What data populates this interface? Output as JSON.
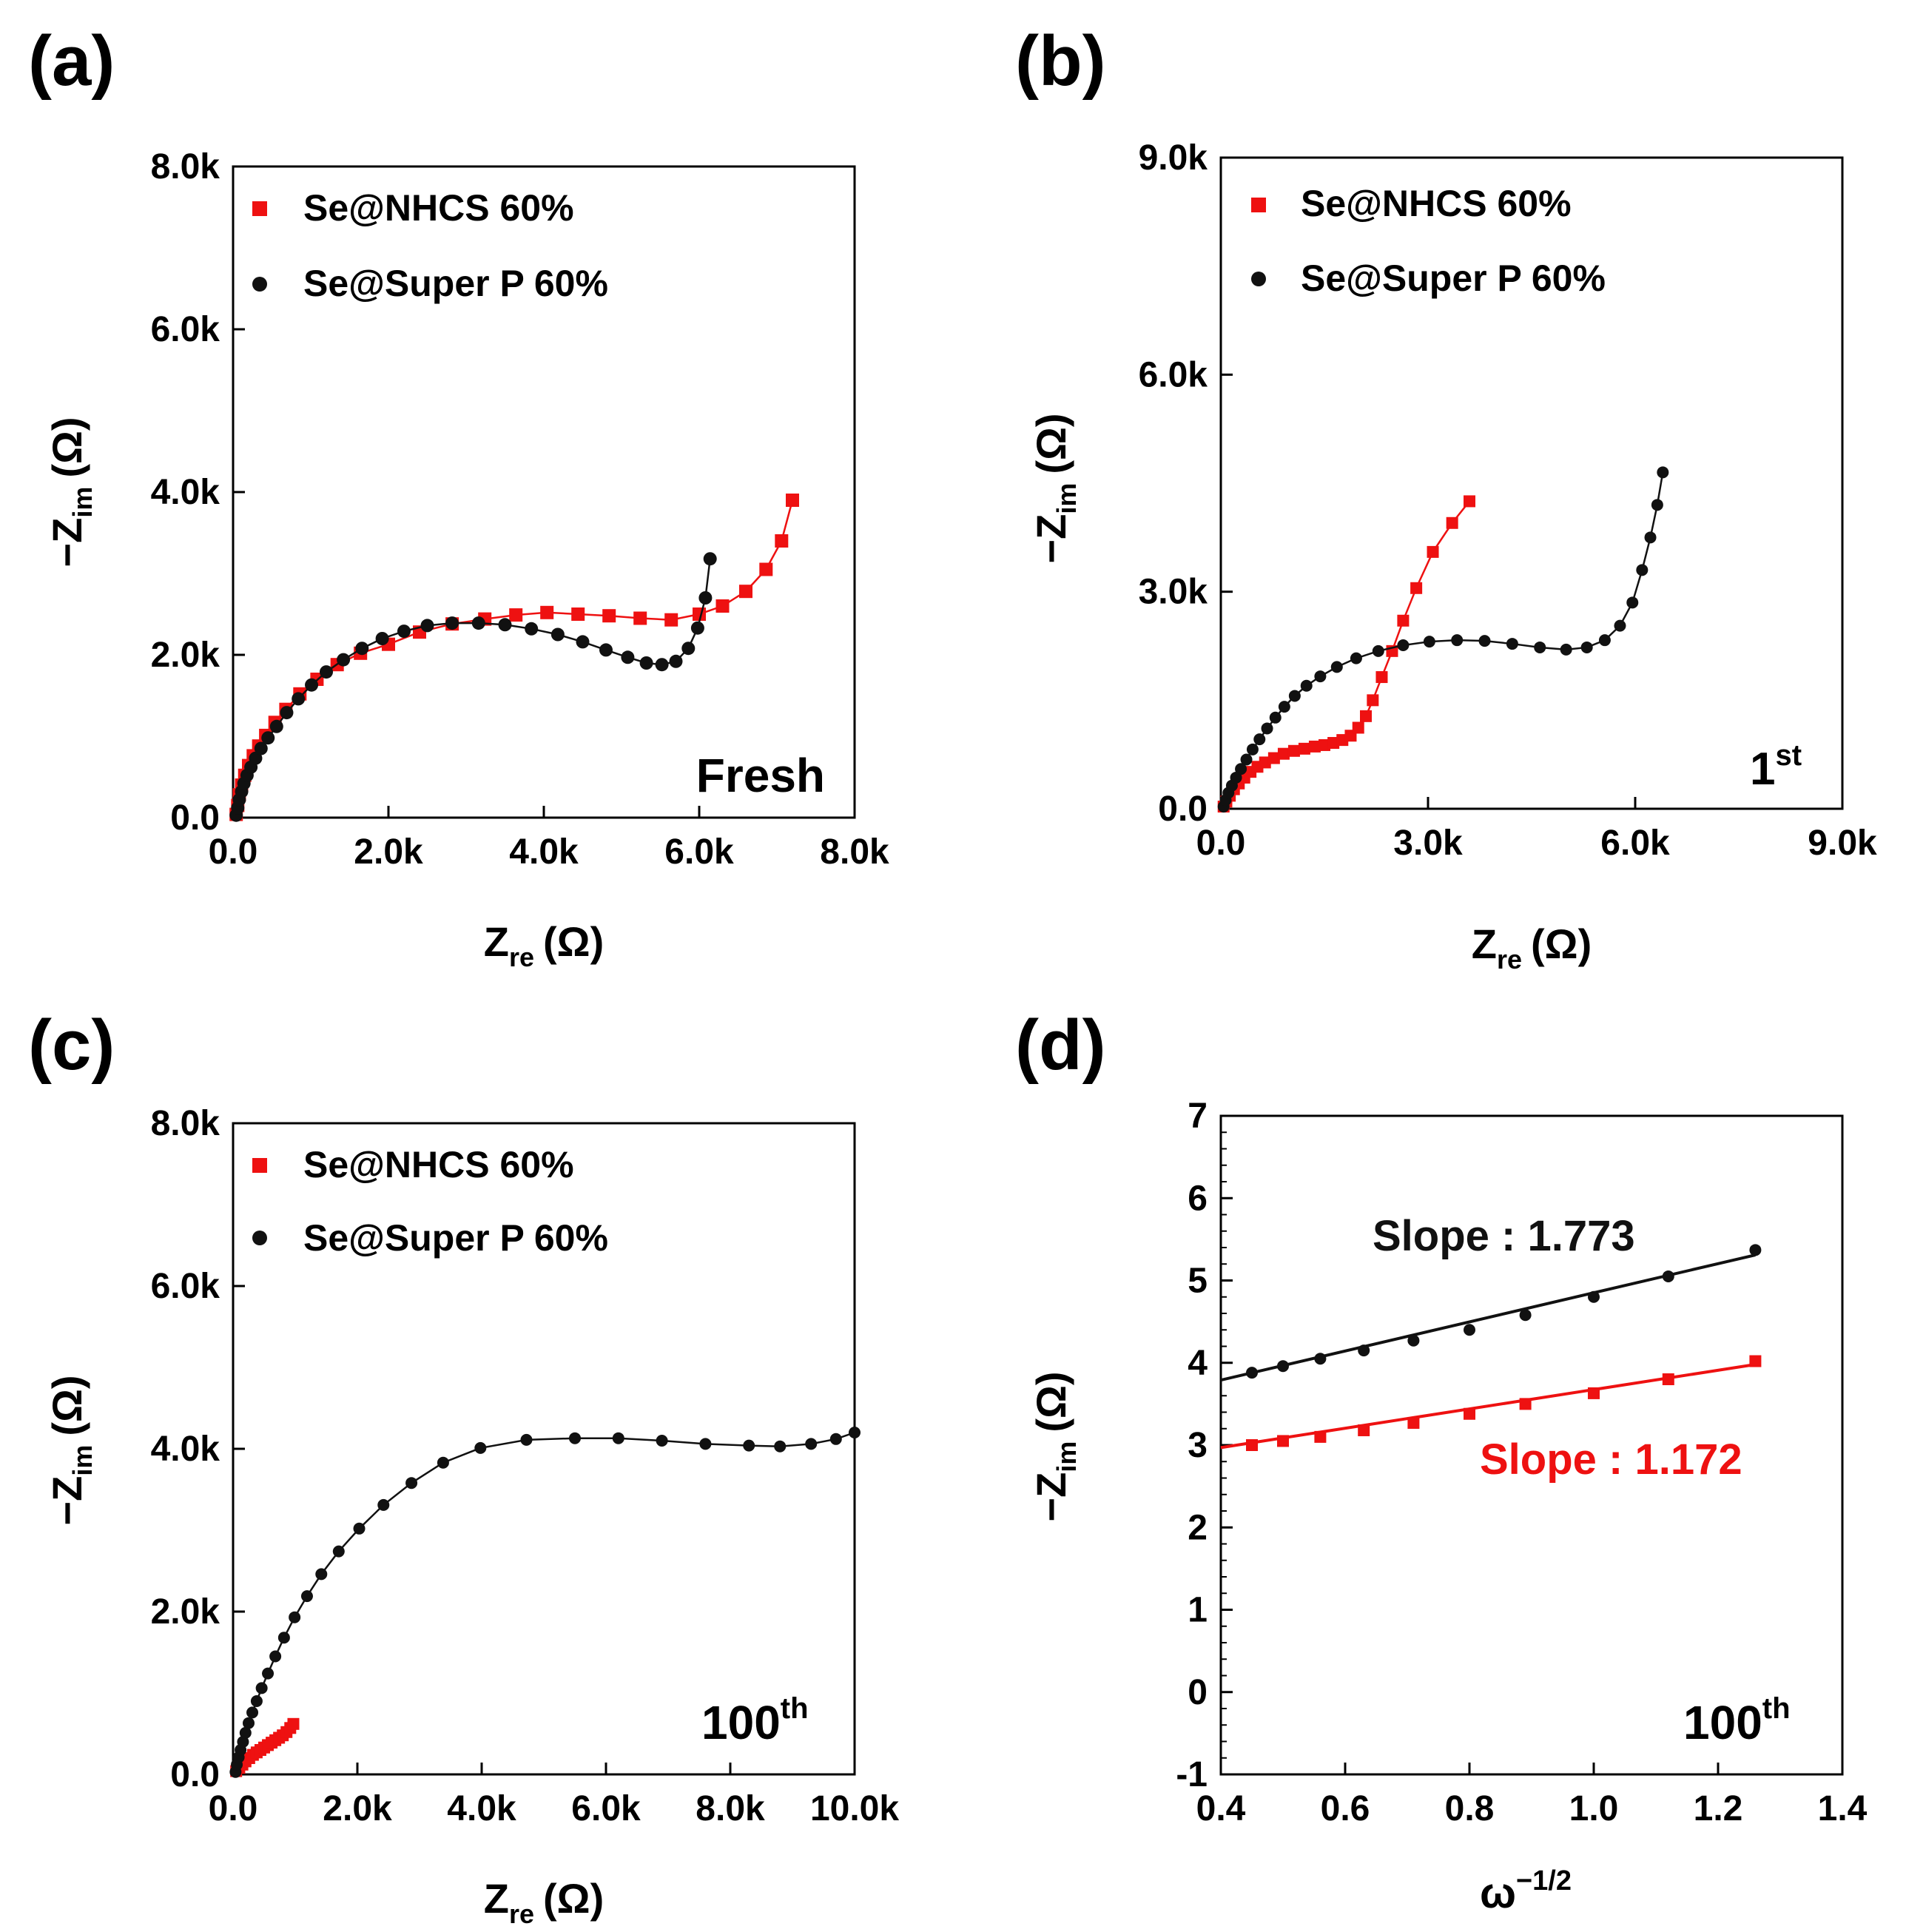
{
  "figure": {
    "colors": {
      "red": "#ee1111",
      "black": "#111111",
      "axis": "#000000"
    }
  },
  "chart_data": [
    {
      "panel": "(a)",
      "type": "scatter",
      "xlabel": "Z",
      "xlabel_sub": "re",
      "xlabel_unit": "(Ω)",
      "ylabel": "−Z",
      "ylabel_sub": "im",
      "ylabel_unit": "(Ω)",
      "xlim": [
        0,
        8000
      ],
      "ylim": [
        0,
        8000
      ],
      "xticks": [
        0,
        2000,
        4000,
        6000,
        8000
      ],
      "xtick_labels": [
        "0.0",
        "2.0k",
        "4.0k",
        "6.0k",
        "8.0k"
      ],
      "yticks": [
        0,
        2000,
        4000,
        6000,
        8000
      ],
      "ytick_labels": [
        "0.0",
        "2.0k",
        "4.0k",
        "6.0k",
        "8.0k"
      ],
      "annotation": "Fresh",
      "annotation_sup": "",
      "legend": [
        "Se@NHCS 60%",
        "Se@Super P 60%"
      ],
      "series": [
        {
          "name": "Se@NHCS 60%",
          "marker": "square",
          "color": "red",
          "x": [
            40,
            60,
            80,
            110,
            150,
            200,
            260,
            330,
            420,
            540,
            680,
            860,
            1080,
            1340,
            1640,
            2000,
            2400,
            2820,
            3240,
            3640,
            4040,
            4440,
            4840,
            5240,
            5640,
            6000,
            6300,
            6600,
            6860,
            7060,
            7200
          ],
          "y": [
            40,
            150,
            280,
            400,
            520,
            640,
            760,
            880,
            1010,
            1170,
            1330,
            1520,
            1700,
            1880,
            2020,
            2130,
            2280,
            2380,
            2440,
            2490,
            2520,
            2500,
            2480,
            2450,
            2430,
            2500,
            2600,
            2780,
            3050,
            3400,
            3900
          ]
        },
        {
          "name": "Se@Super P 60%",
          "marker": "circle",
          "color": "black",
          "x": [
            40,
            60,
            80,
            110,
            140,
            180,
            230,
            290,
            360,
            450,
            560,
            690,
            840,
            1010,
            1200,
            1420,
            1660,
            1920,
            2200,
            2500,
            2820,
            3160,
            3500,
            3840,
            4180,
            4500,
            4800,
            5080,
            5320,
            5520,
            5700,
            5860,
            5980,
            6080,
            6140
          ],
          "y": [
            30,
            120,
            220,
            320,
            420,
            520,
            620,
            730,
            850,
            980,
            1120,
            1290,
            1460,
            1630,
            1790,
            1940,
            2080,
            2200,
            2290,
            2360,
            2390,
            2390,
            2370,
            2320,
            2250,
            2160,
            2060,
            1970,
            1900,
            1880,
            1920,
            2080,
            2330,
            2700,
            3180
          ]
        }
      ]
    },
    {
      "panel": "(b)",
      "type": "scatter",
      "xlabel": "Z",
      "xlabel_sub": "re",
      "xlabel_unit": "(Ω)",
      "ylabel": "−Z",
      "ylabel_sub": "im",
      "ylabel_unit": "(Ω)",
      "xlim": [
        0,
        9000
      ],
      "ylim": [
        0,
        9000
      ],
      "xticks": [
        0,
        3000,
        6000,
        9000
      ],
      "xtick_labels": [
        "0.0",
        "3.0k",
        "6.0k",
        "9.0k"
      ],
      "yticks": [
        0,
        3000,
        6000,
        9000
      ],
      "ytick_labels": [
        "0.0",
        "3.0k",
        "6.0k",
        "9.0k"
      ],
      "annotation": "1",
      "annotation_sup": "st",
      "legend": [
        "Se@NHCS 60%",
        "Se@Super P 60%"
      ],
      "series": [
        {
          "name": "Se@NHCS 60%",
          "marker": "square",
          "color": "red",
          "x": [
            40,
            80,
            130,
            190,
            260,
            340,
            430,
            530,
            640,
            770,
            910,
            1060,
            1210,
            1360,
            1500,
            1630,
            1760,
            1880,
            1990,
            2100,
            2200,
            2330,
            2480,
            2640,
            2830,
            3070,
            3350,
            3600
          ],
          "y": [
            30,
            100,
            180,
            270,
            350,
            430,
            510,
            580,
            640,
            700,
            760,
            800,
            830,
            860,
            880,
            910,
            950,
            1010,
            1120,
            1280,
            1500,
            1820,
            2180,
            2600,
            3050,
            3550,
            3950,
            4250
          ]
        },
        {
          "name": "Se@Super P 60%",
          "marker": "circle",
          "color": "black",
          "x": [
            40,
            70,
            110,
            160,
            220,
            290,
            370,
            460,
            560,
            670,
            790,
            920,
            1070,
            1240,
            1440,
            1680,
            1960,
            2280,
            2640,
            3020,
            3420,
            3820,
            4220,
            4620,
            5000,
            5300,
            5560,
            5780,
            5960,
            6100,
            6220,
            6320,
            6400
          ],
          "y": [
            30,
            120,
            220,
            320,
            430,
            550,
            680,
            820,
            960,
            1110,
            1260,
            1410,
            1560,
            1700,
            1830,
            1960,
            2080,
            2180,
            2260,
            2310,
            2330,
            2320,
            2280,
            2230,
            2200,
            2230,
            2330,
            2530,
            2850,
            3300,
            3750,
            4200,
            4650
          ]
        }
      ]
    },
    {
      "panel": "(c)",
      "type": "scatter",
      "xlabel": "Z",
      "xlabel_sub": "re",
      "xlabel_unit": "(Ω)",
      "ylabel": "−Z",
      "ylabel_sub": "im",
      "ylabel_unit": "(Ω)",
      "xlim": [
        0,
        10000
      ],
      "ylim": [
        0,
        8000
      ],
      "xticks": [
        0,
        2000,
        4000,
        6000,
        8000,
        10000
      ],
      "xtick_labels": [
        "0.0",
        "2.0k",
        "4.0k",
        "6.0k",
        "8.0k",
        "10.0k"
      ],
      "yticks": [
        0,
        2000,
        4000,
        6000,
        8000
      ],
      "ytick_labels": [
        "0.0",
        "2.0k",
        "4.0k",
        "6.0k",
        "8.0k"
      ],
      "annotation": "100",
      "annotation_sup": "th",
      "legend": [
        "Se@NHCS 60%",
        "Se@Super P 60%"
      ],
      "series": [
        {
          "name": "Se@NHCS 60%",
          "marker": "square",
          "color": "red",
          "x": [
            50,
            100,
            150,
            200,
            260,
            320,
            380,
            440,
            500,
            560,
            620,
            680,
            740,
            800,
            860,
            920,
            970
          ],
          "y": [
            40,
            80,
            120,
            160,
            200,
            240,
            270,
            300,
            330,
            360,
            390,
            420,
            450,
            480,
            520,
            570,
            620
          ]
        },
        {
          "name": "Se@Super P 60%",
          "marker": "circle",
          "color": "black",
          "x": [
            40,
            60,
            90,
            120,
            160,
            200,
            250,
            310,
            380,
            460,
            560,
            680,
            820,
            990,
            1190,
            1420,
            1700,
            2030,
            2420,
            2870,
            3380,
            3980,
            4720,
            5500,
            6200,
            6900,
            7600,
            8300,
            8800,
            9300,
            9700,
            10000
          ],
          "y": [
            30,
            120,
            210,
            300,
            400,
            510,
            630,
            760,
            900,
            1060,
            1240,
            1450,
            1680,
            1930,
            2190,
            2460,
            2740,
            3020,
            3310,
            3580,
            3830,
            4010,
            4110,
            4130,
            4130,
            4100,
            4060,
            4040,
            4030,
            4060,
            4120,
            4200
          ]
        }
      ]
    },
    {
      "panel": "(d)",
      "type": "scatter",
      "xlabel": "ω",
      "xlabel_sup": "−1/2",
      "ylabel": "−Z",
      "ylabel_sub": "im",
      "ylabel_unit": "(Ω)",
      "xlim": [
        0.4,
        1.4
      ],
      "ylim": [
        -1,
        7
      ],
      "xticks": [
        0.4,
        0.6,
        0.8,
        1.0,
        1.2,
        1.4
      ],
      "xtick_labels": [
        "0.4",
        "0.6",
        "0.8",
        "1.0",
        "1.2",
        "1.4"
      ],
      "yticks": [
        -1,
        0,
        1,
        2,
        3,
        4,
        5,
        6,
        7
      ],
      "ytick_labels": [
        "-1",
        "0",
        "1",
        "2",
        "3",
        "4",
        "5",
        "6",
        "7"
      ],
      "annotation": "100",
      "annotation_sup": "th",
      "slope_labels": [
        {
          "text": "Slope : 1.773",
          "color": "black"
        },
        {
          "text": "Slope : 1.172",
          "color": "red"
        }
      ],
      "series": [
        {
          "name": "Se@NHCS 60%",
          "marker": "square",
          "color": "red",
          "x": [
            0.45,
            0.5,
            0.56,
            0.63,
            0.71,
            0.8,
            0.89,
            1.0,
            1.12,
            1.26
          ],
          "y": [
            3.0,
            3.05,
            3.1,
            3.18,
            3.27,
            3.38,
            3.5,
            3.63,
            3.8,
            4.02
          ],
          "fit": {
            "x": [
              0.4,
              1.26
            ],
            "y": [
              2.97,
              3.98
            ]
          }
        },
        {
          "name": "Se@Super P 60%",
          "marker": "circle",
          "color": "black",
          "x": [
            0.45,
            0.5,
            0.56,
            0.63,
            0.71,
            0.8,
            0.89,
            1.0,
            1.12,
            1.26
          ],
          "y": [
            3.88,
            3.96,
            4.05,
            4.15,
            4.27,
            4.4,
            4.58,
            4.8,
            5.05,
            5.37
          ],
          "fit": {
            "x": [
              0.4,
              1.26
            ],
            "y": [
              3.79,
              5.31
            ]
          }
        }
      ]
    }
  ]
}
